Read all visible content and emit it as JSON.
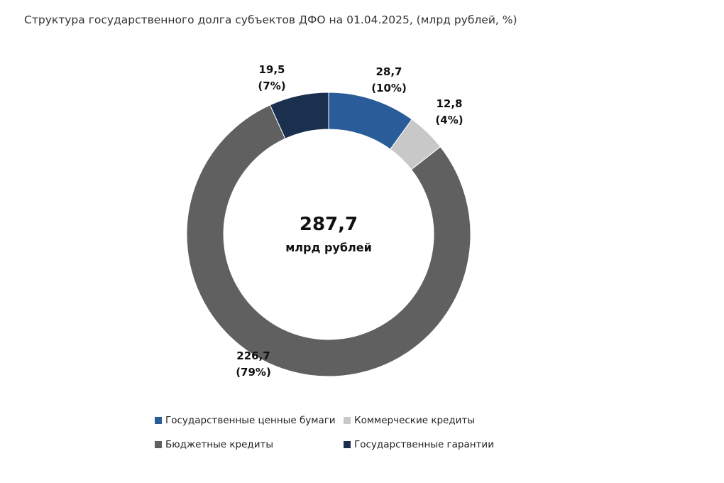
{
  "chart_data": {
    "type": "pie",
    "title": "Структура государственного долга субъектов ДФО на 01.04.2025, (млрд рублей, %)",
    "center_value": "287,7",
    "center_unit": "млрд рублей",
    "total": 287.7,
    "slices": [
      {
        "name": "Государственные ценные бумаги",
        "value": 28.7,
        "value_label": "28,7",
        "percent_label": "(10%)",
        "color": "#2a5c99"
      },
      {
        "name": "Коммерческие кредиты",
        "value": 12.8,
        "value_label": "12,8",
        "percent_label": "(4%)",
        "color": "#c8c8c8"
      },
      {
        "name": "Бюджетные кредиты",
        "value": 226.7,
        "value_label": "226,7",
        "percent_label": "(79%)",
        "color": "#606060"
      },
      {
        "name": "Государственные гарантии",
        "value": 19.5,
        "value_label": "19,5",
        "percent_label": "(7%)",
        "color": "#1b2f4f"
      }
    ],
    "legend_position": "bottom"
  }
}
